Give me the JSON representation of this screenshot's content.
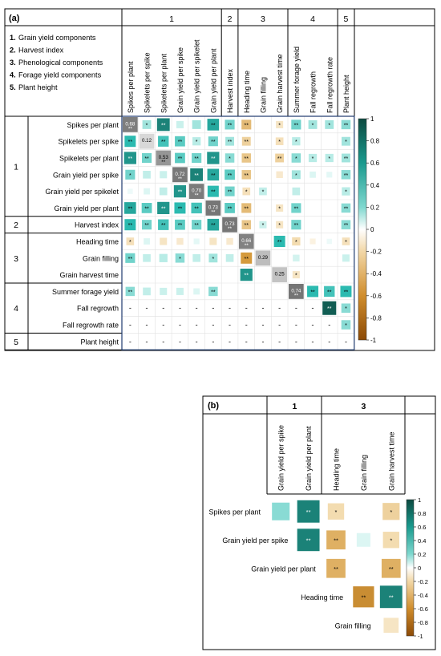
{
  "panel_a": {
    "label": "(a)",
    "legend": [
      {
        "num": "1.",
        "text": "Grain yield components"
      },
      {
        "num": "2.",
        "text": "Harvest index"
      },
      {
        "num": "3.",
        "text": "Phenological components"
      },
      {
        "num": "4.",
        "text": "Forage yield components"
      },
      {
        "num": "5.",
        "text": "Plant height"
      }
    ],
    "groups": [
      {
        "label": "1",
        "start": 0,
        "end": 5
      },
      {
        "label": "2",
        "start": 6,
        "end": 6
      },
      {
        "label": "3",
        "start": 7,
        "end": 9
      },
      {
        "label": "4",
        "start": 10,
        "end": 12
      },
      {
        "label": "5",
        "start": 13,
        "end": 13
      }
    ],
    "variables": [
      "Spikes per plant",
      "Spikelets per spike",
      "Spikelets per plant",
      "Grain yield per spike",
      "Grain yield per spikelet",
      "Grain yield per plant",
      "Harvest index",
      "Heading time",
      "Grain filling",
      "Grain harvest time",
      "Summer forage yield",
      "Fall regrowth",
      "Fall regrowth rate",
      "Plant height"
    ],
    "diagonal": [
      "0.68",
      "0.12",
      "0.53",
      "0.72",
      "0.70",
      "0.73",
      "0.73",
      "0.66",
      "0.29",
      "0.25",
      "0.74"
    ],
    "dash": "-"
  },
  "panel_b": {
    "label": "(b)",
    "groups": [
      {
        "label": "1",
        "start": 0,
        "end": 1
      },
      {
        "label": "3",
        "start": 2,
        "end": 4
      }
    ],
    "col_labels": [
      "Grain yield per spike",
      "Grain yield per plant",
      "Heading time",
      "Grain filling",
      "Grain harvest time"
    ],
    "row_labels": [
      "Spikes per plant",
      "Grain yield per spike",
      "Grain yield per plant",
      "Heading time",
      "Grain filling"
    ]
  },
  "colorbar": {
    "ticks": [
      "1",
      "0.8",
      "0.6",
      "0.4",
      "0.2",
      "0",
      "-0.2",
      "-0.4",
      "-0.6",
      "-0.8",
      "-1"
    ],
    "colors": {
      "neg1": "#8c4a06",
      "neg_mid": "#d59a3c",
      "neg_light": "#f3dcb0",
      "zero": "#ffffff",
      "pos_light": "#b8ece6",
      "pos_mid": "#2bbab0",
      "pos1": "#0c4a40"
    }
  },
  "chart_data": [
    {
      "type": "heatmap",
      "panel": "(a)",
      "variables": [
        "Spikes per plant",
        "Spikelets per spike",
        "Spikelets per plant",
        "Grain yield per spike",
        "Grain yield per spikelet",
        "Grain yield per plant",
        "Harvest index",
        "Heading time",
        "Grain filling",
        "Grain harvest time",
        "Summer forage yield",
        "Fall regrowth",
        "Fall regrowth rate",
        "Plant height"
      ],
      "diagonal_values": [
        0.68,
        0.12,
        0.53,
        0.72,
        0.7,
        0.73,
        0.73,
        0.66,
        0.29,
        0.25,
        0.74,
        null,
        null,
        null
      ],
      "cells": [
        {
          "row": 0,
          "col": 1,
          "r": 0.45,
          "sig": "*"
        },
        {
          "row": 0,
          "col": 2,
          "r": 0.85,
          "sig": "**"
        },
        {
          "row": 0,
          "col": 3,
          "r": 0.3,
          "sig": ""
        },
        {
          "row": 0,
          "col": 4,
          "r": 0.45,
          "sig": ""
        },
        {
          "row": 0,
          "col": 5,
          "r": 0.75,
          "sig": "**"
        },
        {
          "row": 0,
          "col": 6,
          "r": 0.55,
          "sig": "**"
        },
        {
          "row": 0,
          "col": 7,
          "r": -0.55,
          "sig": "**"
        },
        {
          "row": 0,
          "col": 8,
          "r": 0.0,
          "sig": ""
        },
        {
          "row": 0,
          "col": 9,
          "r": -0.3,
          "sig": "*"
        },
        {
          "row": 0,
          "col": 10,
          "r": 0.55,
          "sig": "**"
        },
        {
          "row": 0,
          "col": 11,
          "r": 0.45,
          "sig": "*"
        },
        {
          "row": 0,
          "col": 12,
          "r": 0.45,
          "sig": "*"
        },
        {
          "row": 0,
          "col": 13,
          "r": 0.5,
          "sig": "**"
        },
        {
          "row": 1,
          "col": 0,
          "r": 0.7,
          "sig": "**"
        },
        {
          "row": 1,
          "col": 2,
          "r": 0.65,
          "sig": "**"
        },
        {
          "row": 1,
          "col": 3,
          "r": 0.6,
          "sig": "**"
        },
        {
          "row": 1,
          "col": 4,
          "r": 0.4,
          "sig": "*"
        },
        {
          "row": 1,
          "col": 5,
          "r": 0.55,
          "sig": "**"
        },
        {
          "row": 1,
          "col": 6,
          "r": 0.45,
          "sig": "**"
        },
        {
          "row": 1,
          "col": 7,
          "r": -0.45,
          "sig": "**"
        },
        {
          "row": 1,
          "col": 8,
          "r": 0.0,
          "sig": ""
        },
        {
          "row": 1,
          "col": 9,
          "r": -0.35,
          "sig": "*"
        },
        {
          "row": 1,
          "col": 10,
          "r": 0.4,
          "sig": "*"
        },
        {
          "row": 1,
          "col": 13,
          "r": 0.45,
          "sig": "*"
        },
        {
          "row": 2,
          "col": 0,
          "r": 0.8,
          "sig": "**"
        },
        {
          "row": 2,
          "col": 1,
          "r": 0.55,
          "sig": "**"
        },
        {
          "row": 2,
          "col": 3,
          "r": 0.6,
          "sig": "**"
        },
        {
          "row": 2,
          "col": 4,
          "r": 0.55,
          "sig": "**"
        },
        {
          "row": 2,
          "col": 5,
          "r": 0.8,
          "sig": "**"
        },
        {
          "row": 2,
          "col": 6,
          "r": 0.5,
          "sig": "*"
        },
        {
          "row": 2,
          "col": 7,
          "r": -0.5,
          "sig": "**"
        },
        {
          "row": 2,
          "col": 9,
          "r": -0.45,
          "sig": "**"
        },
        {
          "row": 2,
          "col": 10,
          "r": 0.5,
          "sig": "*"
        },
        {
          "row": 2,
          "col": 11,
          "r": 0.4,
          "sig": "*"
        },
        {
          "row": 2,
          "col": 12,
          "r": 0.4,
          "sig": "*"
        },
        {
          "row": 2,
          "col": 13,
          "r": 0.45,
          "sig": "**"
        },
        {
          "row": 3,
          "col": 0,
          "r": 0.55,
          "sig": "*"
        },
        {
          "row": 3,
          "col": 1,
          "r": 0.35,
          "sig": ""
        },
        {
          "row": 3,
          "col": 2,
          "r": 0.3,
          "sig": ""
        },
        {
          "row": 3,
          "col": 4,
          "r": 0.85,
          "sig": "**"
        },
        {
          "row": 3,
          "col": 5,
          "r": 0.75,
          "sig": "**"
        },
        {
          "row": 3,
          "col": 6,
          "r": 0.6,
          "sig": "**"
        },
        {
          "row": 3,
          "col": 7,
          "r": -0.5,
          "sig": "**"
        },
        {
          "row": 3,
          "col": 9,
          "r": -0.25,
          "sig": ""
        },
        {
          "row": 3,
          "col": 10,
          "r": 0.45,
          "sig": "*"
        },
        {
          "row": 3,
          "col": 11,
          "r": 0.2,
          "sig": ""
        },
        {
          "row": 3,
          "col": 12,
          "r": 0.15,
          "sig": ""
        },
        {
          "row": 3,
          "col": 13,
          "r": 0.5,
          "sig": "**"
        },
        {
          "row": 4,
          "col": 0,
          "r": 0.1,
          "sig": ""
        },
        {
          "row": 4,
          "col": 1,
          "r": 0.2,
          "sig": ""
        },
        {
          "row": 4,
          "col": 2,
          "r": 0.35,
          "sig": ""
        },
        {
          "row": 4,
          "col": 3,
          "r": 0.8,
          "sig": "**"
        },
        {
          "row": 4,
          "col": 5,
          "r": 0.7,
          "sig": "**"
        },
        {
          "row": 4,
          "col": 6,
          "r": 0.55,
          "sig": "**"
        },
        {
          "row": 4,
          "col": 7,
          "r": -0.35,
          "sig": "*"
        },
        {
          "row": 4,
          "col": 8,
          "r": 0.35,
          "sig": "*"
        },
        {
          "row": 4,
          "col": 10,
          "r": 0.35,
          "sig": ""
        },
        {
          "row": 4,
          "col": 13,
          "r": 0.4,
          "sig": "*"
        },
        {
          "row": 5,
          "col": 0,
          "r": 0.75,
          "sig": "**"
        },
        {
          "row": 5,
          "col": 1,
          "r": 0.6,
          "sig": "**"
        },
        {
          "row": 5,
          "col": 2,
          "r": 0.8,
          "sig": "**"
        },
        {
          "row": 5,
          "col": 3,
          "r": 0.7,
          "sig": "**"
        },
        {
          "row": 5,
          "col": 4,
          "r": 0.65,
          "sig": "**"
        },
        {
          "row": 5,
          "col": 6,
          "r": 0.6,
          "sig": "**"
        },
        {
          "row": 5,
          "col": 7,
          "r": -0.55,
          "sig": "**"
        },
        {
          "row": 5,
          "col": 9,
          "r": -0.3,
          "sig": "*"
        },
        {
          "row": 5,
          "col": 10,
          "r": 0.55,
          "sig": "**"
        },
        {
          "row": 5,
          "col": 13,
          "r": 0.5,
          "sig": "**"
        },
        {
          "row": 6,
          "col": 0,
          "r": 0.7,
          "sig": "**"
        },
        {
          "row": 6,
          "col": 1,
          "r": 0.55,
          "sig": "**"
        },
        {
          "row": 6,
          "col": 2,
          "r": 0.65,
          "sig": "**"
        },
        {
          "row": 6,
          "col": 3,
          "r": 0.6,
          "sig": "**"
        },
        {
          "row": 6,
          "col": 4,
          "r": 0.55,
          "sig": "**"
        },
        {
          "row": 6,
          "col": 5,
          "r": 0.75,
          "sig": "**"
        },
        {
          "row": 6,
          "col": 7,
          "r": -0.5,
          "sig": "**"
        },
        {
          "row": 6,
          "col": 8,
          "r": 0.3,
          "sig": "*"
        },
        {
          "row": 6,
          "col": 9,
          "r": -0.3,
          "sig": "*"
        },
        {
          "row": 6,
          "col": 10,
          "r": 0.55,
          "sig": "**"
        },
        {
          "row": 6,
          "col": 13,
          "r": 0.5,
          "sig": "**"
        },
        {
          "row": 7,
          "col": 0,
          "r": -0.35,
          "sig": "*"
        },
        {
          "row": 7,
          "col": 1,
          "r": 0.2,
          "sig": ""
        },
        {
          "row": 7,
          "col": 2,
          "r": -0.3,
          "sig": ""
        },
        {
          "row": 7,
          "col": 3,
          "r": -0.25,
          "sig": ""
        },
        {
          "row": 7,
          "col": 4,
          "r": 0.15,
          "sig": ""
        },
        {
          "row": 7,
          "col": 5,
          "r": -0.3,
          "sig": ""
        },
        {
          "row": 7,
          "col": 6,
          "r": -0.25,
          "sig": ""
        },
        {
          "row": 7,
          "col": 9,
          "r": 0.7,
          "sig": "**"
        },
        {
          "row": 7,
          "col": 10,
          "r": -0.4,
          "sig": "*"
        },
        {
          "row": 7,
          "col": 11,
          "r": -0.15,
          "sig": ""
        },
        {
          "row": 7,
          "col": 12,
          "r": 0.1,
          "sig": ""
        },
        {
          "row": 7,
          "col": 13,
          "r": -0.35,
          "sig": "*"
        },
        {
          "row": 8,
          "col": 0,
          "r": 0.55,
          "sig": "**"
        },
        {
          "row": 8,
          "col": 1,
          "r": 0.35,
          "sig": ""
        },
        {
          "row": 8,
          "col": 2,
          "r": 0.4,
          "sig": ""
        },
        {
          "row": 8,
          "col": 3,
          "r": 0.5,
          "sig": "*"
        },
        {
          "row": 8,
          "col": 4,
          "r": 0.35,
          "sig": ""
        },
        {
          "row": 8,
          "col": 5,
          "r": 0.45,
          "sig": "*"
        },
        {
          "row": 8,
          "col": 6,
          "r": 0.35,
          "sig": ""
        },
        {
          "row": 8,
          "col": 7,
          "r": -0.7,
          "sig": "**"
        },
        {
          "row": 8,
          "col": 9,
          "r": 0.0,
          "sig": ""
        },
        {
          "row": 8,
          "col": 10,
          "r": 0.25,
          "sig": ""
        },
        {
          "row": 8,
          "col": 13,
          "r": 0.3,
          "sig": ""
        },
        {
          "row": 9,
          "col": 7,
          "r": 0.8,
          "sig": "**"
        },
        {
          "row": 9,
          "col": 10,
          "r": -0.3,
          "sig": "*"
        },
        {
          "row": 10,
          "col": 0,
          "r": 0.5,
          "sig": "**"
        },
        {
          "row": 10,
          "col": 1,
          "r": 0.35,
          "sig": ""
        },
        {
          "row": 10,
          "col": 2,
          "r": 0.3,
          "sig": ""
        },
        {
          "row": 10,
          "col": 3,
          "r": 0.3,
          "sig": ""
        },
        {
          "row": 10,
          "col": 4,
          "r": 0.2,
          "sig": ""
        },
        {
          "row": 10,
          "col": 5,
          "r": 0.5,
          "sig": "**"
        },
        {
          "row": 10,
          "col": 11,
          "r": 0.7,
          "sig": "**"
        },
        {
          "row": 10,
          "col": 12,
          "r": 0.65,
          "sig": "**"
        },
        {
          "row": 10,
          "col": 13,
          "r": 0.7,
          "sig": "**"
        },
        {
          "row": 11,
          "col": 12,
          "r": 0.95,
          "sig": "**"
        },
        {
          "row": 11,
          "col": 13,
          "r": 0.5,
          "sig": "*"
        },
        {
          "row": 12,
          "col": 13,
          "r": 0.5,
          "sig": "*"
        }
      ],
      "dash_rows": [
        11,
        12,
        13
      ]
    },
    {
      "type": "heatmap",
      "panel": "(b)",
      "columns": [
        "Grain yield per spike",
        "Grain yield per plant",
        "Heading time",
        "Grain filling",
        "Grain harvest time"
      ],
      "rows": [
        "Spikes per plant",
        "Grain yield per spike",
        "Grain yield per plant",
        "Heading time",
        "Grain filling"
      ],
      "cells": [
        {
          "row": 0,
          "col": 0,
          "r": 0.5,
          "sig": ""
        },
        {
          "row": 0,
          "col": 1,
          "r": 0.85,
          "sig": "**"
        },
        {
          "row": 0,
          "col": 2,
          "r": -0.4,
          "sig": "*"
        },
        {
          "row": 0,
          "col": 3,
          "r": 0.0,
          "sig": ""
        },
        {
          "row": 0,
          "col": 4,
          "r": -0.45,
          "sig": "*"
        },
        {
          "row": 1,
          "col": 1,
          "r": 0.85,
          "sig": "**"
        },
        {
          "row": 1,
          "col": 2,
          "r": -0.6,
          "sig": "**"
        },
        {
          "row": 1,
          "col": 3,
          "r": 0.2,
          "sig": ""
        },
        {
          "row": 1,
          "col": 4,
          "r": -0.4,
          "sig": "*"
        },
        {
          "row": 2,
          "col": 2,
          "r": -0.6,
          "sig": "**"
        },
        {
          "row": 2,
          "col": 4,
          "r": -0.6,
          "sig": "**"
        },
        {
          "row": 3,
          "col": 3,
          "r": -0.75,
          "sig": "**"
        },
        {
          "row": 3,
          "col": 4,
          "r": 0.85,
          "sig": "**"
        },
        {
          "row": 4,
          "col": 4,
          "r": -0.3,
          "sig": ""
        }
      ]
    }
  ]
}
